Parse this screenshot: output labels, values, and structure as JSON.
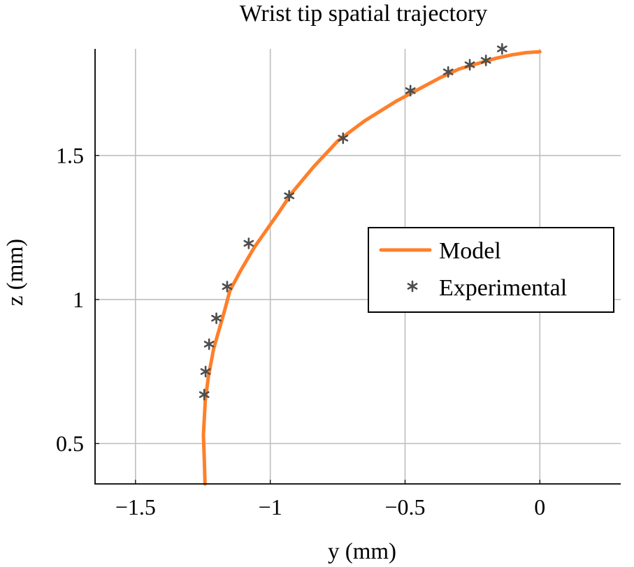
{
  "chart_data": {
    "type": "line",
    "title": "Wrist tip spatial trajectory",
    "xlabel": "y (mm)",
    "ylabel": "z (mm)",
    "xlim": [
      -1.65,
      0.3
    ],
    "ylim": [
      0.36,
      1.87
    ],
    "xticks": [
      -1.5,
      -1,
      -0.5,
      0
    ],
    "xtick_labels": [
      "−1.5",
      "−1",
      "−0.5",
      "0"
    ],
    "yticks": [
      0.5,
      1,
      1.5
    ],
    "ytick_labels": [
      "0.5",
      "1",
      "1.5"
    ],
    "grid": true,
    "legend_position": "center-right",
    "colors": {
      "model": "#ff7f2a",
      "experimental": "#4d4d4d"
    },
    "series": [
      {
        "name": "Model",
        "style": "line",
        "x": [
          -1.242,
          -1.245,
          -1.248,
          -1.241,
          -1.23,
          -1.21,
          -1.17,
          -1.15,
          -1.11,
          -1.06,
          -0.97,
          -0.92,
          -0.84,
          -0.75,
          -0.65,
          -0.53,
          -0.45,
          -0.37,
          -0.3,
          -0.22,
          -0.16,
          -0.1,
          -0.05,
          0.0
        ],
        "y": [
          0.36,
          0.45,
          0.53,
          0.65,
          0.73,
          0.83,
          0.96,
          1.03,
          1.1,
          1.18,
          1.3,
          1.37,
          1.46,
          1.55,
          1.62,
          1.69,
          1.73,
          1.77,
          1.8,
          1.822,
          1.838,
          1.85,
          1.857,
          1.86
        ]
      },
      {
        "name": "Experimental",
        "style": "marker",
        "marker": "asterisk",
        "x": [
          -1.245,
          -1.24,
          -1.227,
          -1.2,
          -1.16,
          -1.08,
          -0.93,
          -0.73,
          -0.48,
          -0.34,
          -0.26,
          -0.2,
          -0.14
        ],
        "y": [
          0.67,
          0.75,
          0.845,
          0.935,
          1.045,
          1.195,
          1.36,
          1.56,
          1.725,
          1.79,
          1.815,
          1.83,
          1.87
        ]
      }
    ]
  }
}
